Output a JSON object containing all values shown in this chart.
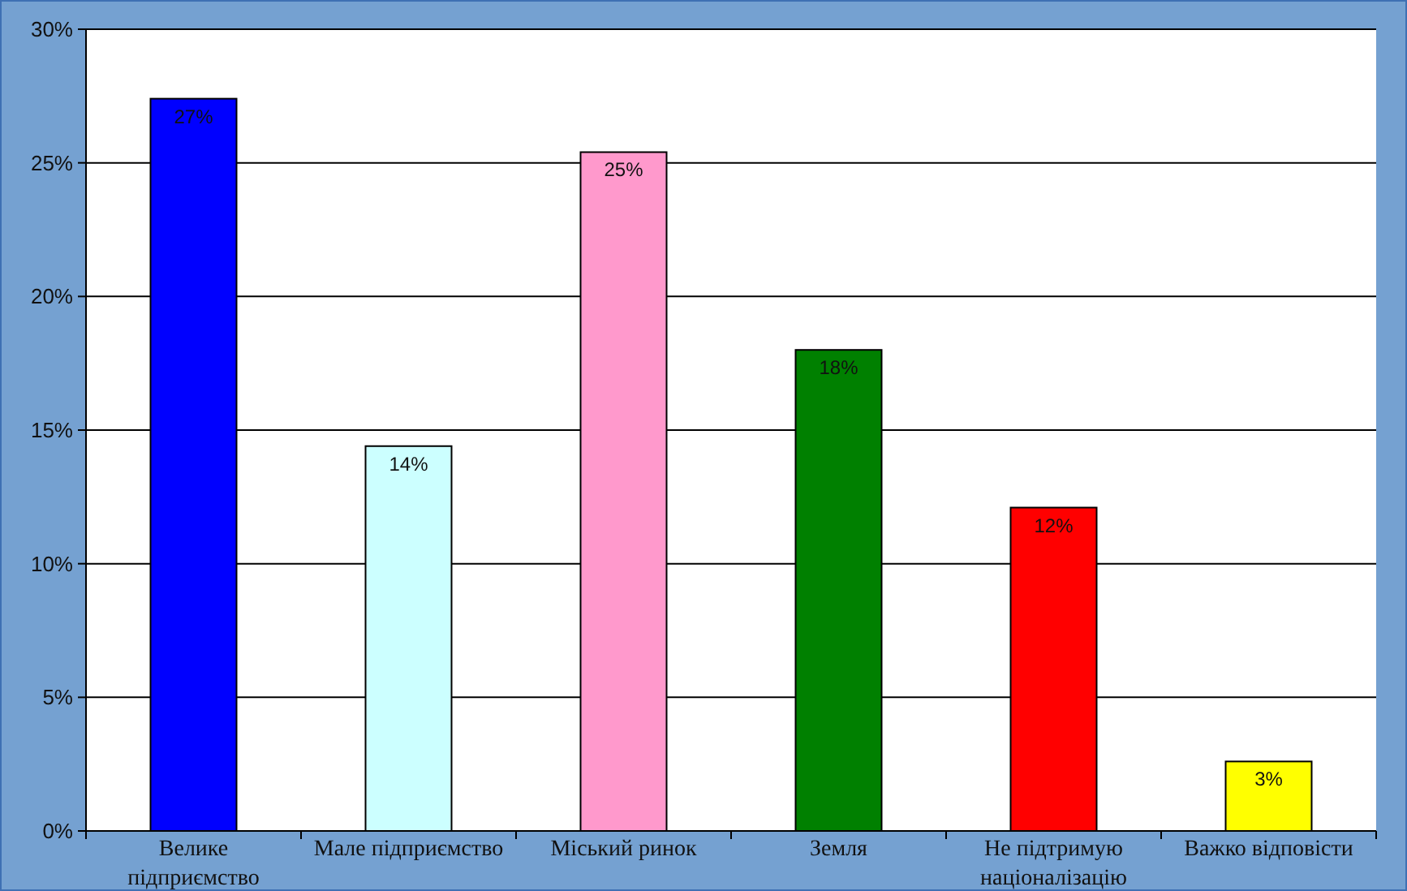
{
  "chart_data": {
    "type": "bar",
    "categories": [
      "Велике підприємство",
      "Мале підприємство",
      "Міський ринок",
      "Земля",
      "Не підтримую націоналізацію",
      "Важко відповісти"
    ],
    "values": [
      27.4,
      14.4,
      25.4,
      18.0,
      12.1,
      2.6
    ],
    "colors": [
      "#0000ff",
      "#ccffff",
      "#ff99cc",
      "#008000",
      "#ff0000",
      "#ffff00"
    ],
    "value_labels": [
      "27%",
      "14%",
      "25%",
      "18%",
      "12%",
      "3%"
    ],
    "ylim": [
      0,
      30
    ],
    "yticks": [
      {
        "value": 0,
        "label": "0%"
      },
      {
        "value": 5,
        "label": "5%"
      },
      {
        "value": 10,
        "label": "10%"
      },
      {
        "value": 15,
        "label": "15%"
      },
      {
        "value": 20,
        "label": "20%"
      },
      {
        "value": 25,
        "label": "25%"
      },
      {
        "value": 30,
        "label": "30%"
      }
    ],
    "grid": "y"
  }
}
